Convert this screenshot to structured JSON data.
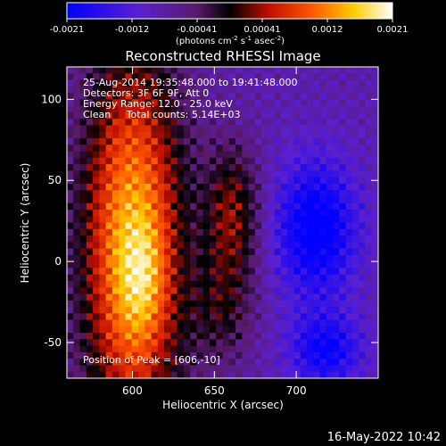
{
  "chart_data": {
    "type": "heatmap",
    "title": "Reconstructed RHESSI Image",
    "xlabel": "Heliocentric X (arcsec)",
    "ylabel": "Heliocentric Y (arcsec)",
    "xlim": [
      560,
      750
    ],
    "ylim": [
      -72,
      120
    ],
    "x_ticks": [
      {
        "value": 600,
        "label": "600"
      },
      {
        "value": 650,
        "label": "650"
      },
      {
        "value": 700,
        "label": "700"
      }
    ],
    "y_ticks": [
      {
        "value": -50,
        "label": "-50"
      },
      {
        "value": 0,
        "label": "0"
      },
      {
        "value": 50,
        "label": "50"
      },
      {
        "value": 100,
        "label": "100"
      }
    ],
    "colorbar": {
      "min": -0.0021,
      "max": 0.0021,
      "tick_labels": [
        "-0.0021",
        "-0.0012",
        "-0.00041",
        "0.00041",
        "0.0012",
        "0.0021"
      ],
      "unit_parts": [
        "(photons cm",
        "-2",
        " s",
        "-1",
        " asec",
        "-2",
        ")"
      ]
    },
    "info_lines": [
      "25-Aug-2014 19:35:48.000 to 19:41:48.000",
      "Detectors: 3F 6F 9F, Att 0",
      "Energy Range: 12.0 - 25.0 keV",
      "Clean     Total counts: 5.14E+03"
    ],
    "peak_label": "Position of Peak = [606,-10]",
    "grid_cols": 48,
    "grid_rows": 48,
    "sources": [
      {
        "x": 600,
        "y": 10,
        "sx": 22,
        "sy": 85,
        "amp": 0.0024
      },
      {
        "x": 606,
        "y": -10,
        "sx": 10,
        "sy": 25,
        "amp": 0.0006
      },
      {
        "x": 661,
        "y": 30,
        "sx": 12,
        "sy": 30,
        "amp": 0.0012
      },
      {
        "x": 655,
        "y": -30,
        "sx": 14,
        "sy": 25,
        "amp": 0.0007
      },
      {
        "x": 712,
        "y": 20,
        "sx": 18,
        "sy": 30,
        "amp": -0.0014
      },
      {
        "x": 718,
        "y": -55,
        "sx": 16,
        "sy": 16,
        "amp": -0.0011
      }
    ],
    "background": -0.0009
  },
  "timestamp": "16-May-2022 10:42"
}
